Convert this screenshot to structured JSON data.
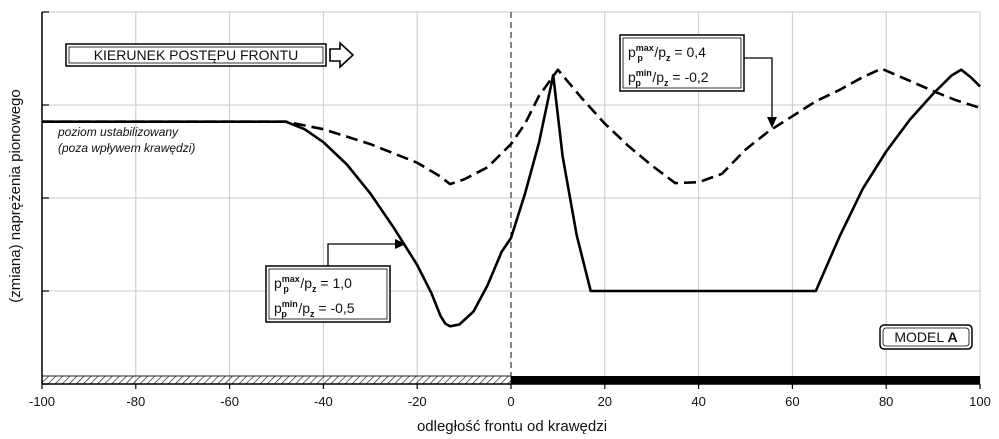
{
  "chart_data": {
    "type": "line",
    "xlabel": "odległość frontu od krawędzi",
    "ylabel": "(zmiana) naprężenia pionowego",
    "xlim": [
      -100,
      100
    ],
    "ylim": [
      0,
      4
    ],
    "x_ticks": [
      "-100",
      "-80",
      "-60",
      "-40",
      "-20",
      "0",
      "20",
      "40",
      "60",
      "80",
      "100"
    ],
    "grid": true,
    "direction_label": "KIERUNEK POSTĘPU FRONTU",
    "model_label_prefix": "MODEL ",
    "model_label_letter": "A",
    "stable_level_note": [
      "poziom ustabilizowany",
      "(poza wpływem krawędzi)"
    ],
    "series": [
      {
        "style": "solid",
        "ratios": [
          {
            "text": "p",
            "sub": "p",
            "sup": "max",
            "rest": "/p",
            "rest_sub": "z",
            "value": " = 1,0"
          },
          {
            "text": "p",
            "sub": "p",
            "sup": "min",
            "rest": "/p",
            "rest_sub": "z",
            "value": " = -0,5"
          }
        ],
        "points": [
          [
            -100,
            2.82
          ],
          [
            -48,
            2.82
          ],
          [
            -44,
            2.74
          ],
          [
            -40,
            2.6
          ],
          [
            -35,
            2.36
          ],
          [
            -30,
            2.05
          ],
          [
            -25,
            1.68
          ],
          [
            -20,
            1.28
          ],
          [
            -17,
            0.98
          ],
          [
            -15,
            0.73
          ],
          [
            -14,
            0.65
          ],
          [
            -13,
            0.62
          ],
          [
            -11,
            0.64
          ],
          [
            -8,
            0.78
          ],
          [
            -5,
            1.06
          ],
          [
            -2,
            1.42
          ],
          [
            0,
            1.57
          ],
          [
            3,
            2.05
          ],
          [
            6,
            2.6
          ],
          [
            9,
            3.32
          ],
          [
            11,
            2.45
          ],
          [
            14,
            1.6
          ],
          [
            17,
            1.0
          ],
          [
            40,
            1.0
          ],
          [
            65,
            1.0
          ],
          [
            70,
            1.58
          ],
          [
            75,
            2.1
          ],
          [
            80,
            2.5
          ],
          [
            85,
            2.84
          ],
          [
            90,
            3.12
          ],
          [
            94,
            3.32
          ],
          [
            96,
            3.38
          ],
          [
            98,
            3.3
          ],
          [
            100,
            3.2
          ]
        ]
      },
      {
        "style": "dashed",
        "ratios": [
          {
            "text": "p",
            "sub": "p",
            "sup": "max",
            "rest": "/p",
            "rest_sub": "z",
            "value": " = 0,4"
          },
          {
            "text": "p",
            "sub": "p",
            "sup": "min",
            "rest": "/p",
            "rest_sub": "z",
            "value": " = -0,2"
          }
        ],
        "points": [
          [
            -100,
            2.82
          ],
          [
            -48,
            2.82
          ],
          [
            -40,
            2.74
          ],
          [
            -30,
            2.58
          ],
          [
            -20,
            2.38
          ],
          [
            -15,
            2.23
          ],
          [
            -13,
            2.15
          ],
          [
            -10,
            2.2
          ],
          [
            -5,
            2.33
          ],
          [
            0,
            2.58
          ],
          [
            3,
            2.8
          ],
          [
            6,
            3.1
          ],
          [
            10,
            3.38
          ],
          [
            15,
            3.08
          ],
          [
            20,
            2.8
          ],
          [
            25,
            2.56
          ],
          [
            30,
            2.35
          ],
          [
            35,
            2.16
          ],
          [
            40,
            2.17
          ],
          [
            45,
            2.26
          ],
          [
            50,
            2.52
          ],
          [
            55,
            2.72
          ],
          [
            60,
            2.88
          ],
          [
            65,
            3.04
          ],
          [
            70,
            3.16
          ],
          [
            75,
            3.3
          ],
          [
            79,
            3.39
          ],
          [
            85,
            3.26
          ],
          [
            90,
            3.15
          ],
          [
            95,
            3.05
          ],
          [
            100,
            2.97
          ]
        ]
      }
    ]
  }
}
